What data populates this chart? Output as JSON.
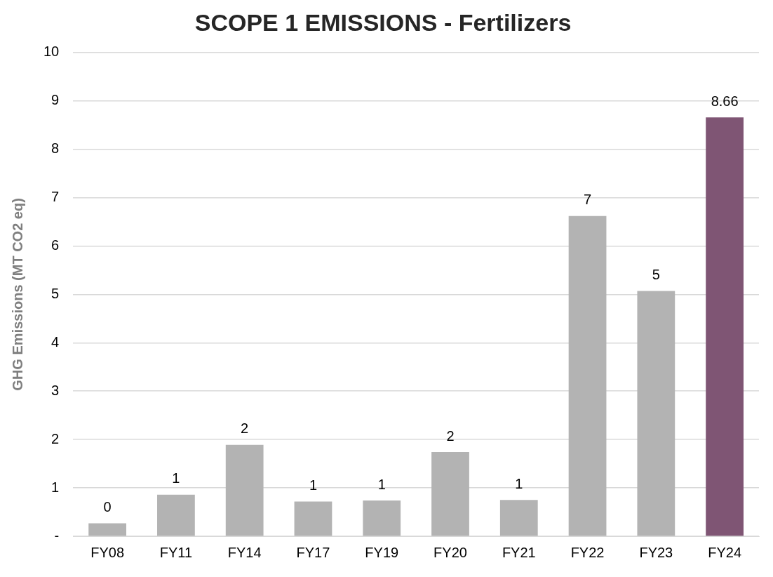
{
  "chart_data": {
    "type": "bar",
    "title": "SCOPE 1 EMISSIONS - Fertilizers",
    "ylabel": "GHG Emissions (MT CO2 eq)",
    "categories": [
      "FY08",
      "FY11",
      "FY14",
      "FY17",
      "FY19",
      "FY20",
      "FY21",
      "FY22",
      "FY23",
      "FY24"
    ],
    "values": [
      0.27,
      0.86,
      1.89,
      0.72,
      0.74,
      1.74,
      0.75,
      6.62,
      5.07,
      8.66
    ],
    "colors": [
      "#b3b3b3",
      "#b3b3b3",
      "#b3b3b3",
      "#b3b3b3",
      "#b3b3b3",
      "#b3b3b3",
      "#b3b3b3",
      "#b3b3b3",
      "#b3b3b3",
      "#7f5574"
    ],
    "value_labels": [
      "0",
      "1",
      "2",
      "1",
      "1",
      "2",
      "1",
      "7",
      "5",
      "8.66"
    ],
    "ylim": [
      0,
      10
    ],
    "yticks": [
      {
        "value": 0,
        "label": "-"
      },
      1,
      2,
      3,
      4,
      5,
      6,
      7,
      8,
      9,
      10
    ],
    "grid": "y",
    "legend": false
  }
}
